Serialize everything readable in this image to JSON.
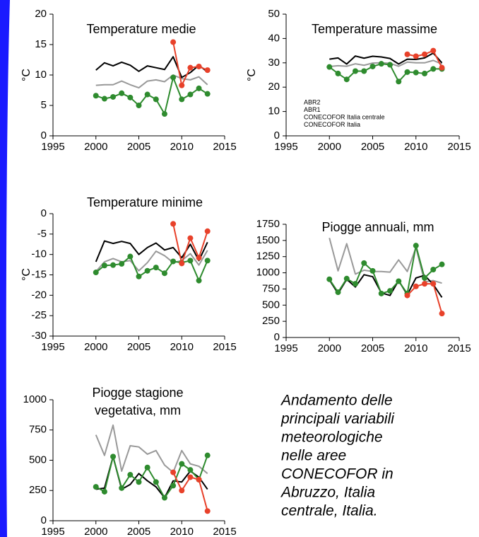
{
  "chart_data": [
    {
      "type": "line",
      "title": "Temperature medie",
      "ylabel": "°C",
      "x": [
        2000,
        2001,
        2002,
        2003,
        2004,
        2005,
        2006,
        2007,
        2008,
        2009,
        2010,
        2011,
        2012,
        2013
      ],
      "xlim": [
        1995,
        2015
      ],
      "xticks": [
        1995,
        2000,
        2005,
        2010,
        2015
      ],
      "ylim": [
        0,
        20
      ],
      "yticks": [
        0,
        5,
        10,
        15,
        20
      ],
      "series": [
        {
          "color": "#999999",
          "values": [
            8.3,
            8.4,
            8.4,
            9.0,
            8.4,
            7.9,
            9.0,
            9.2,
            8.9,
            10.0,
            9.4,
            9.2,
            9.7,
            8.4
          ]
        },
        {
          "color": "#000000",
          "values": [
            10.8,
            12.0,
            11.5,
            12.1,
            11.6,
            10.6,
            11.5,
            11.2,
            10.9,
            13.0,
            9.6,
            10.4,
            11.6,
            10.5
          ]
        },
        {
          "color": "#2e8b2e",
          "markers": true,
          "values": [
            6.6,
            6.1,
            6.4,
            7.0,
            6.3,
            5.0,
            6.8,
            6.0,
            3.6,
            9.6,
            6.0,
            6.8,
            7.8,
            6.9
          ]
        },
        {
          "color": "#e8412a",
          "markers": true,
          "values": [
            null,
            null,
            null,
            null,
            null,
            null,
            null,
            null,
            null,
            15.4,
            8.3,
            11.2,
            11.4,
            10.8
          ]
        }
      ]
    },
    {
      "type": "line",
      "title": "Temperature massime",
      "ylabel": "°C",
      "legend": true,
      "x": [
        2000,
        2001,
        2002,
        2003,
        2004,
        2005,
        2006,
        2007,
        2008,
        2009,
        2010,
        2011,
        2012,
        2013
      ],
      "xlim": [
        1995,
        2015
      ],
      "xticks": [
        1995,
        2000,
        2005,
        2010,
        2015
      ],
      "ylim": [
        0,
        50
      ],
      "yticks": [
        0,
        10,
        20,
        30,
        40,
        50
      ],
      "series": [
        {
          "name": "CONECOFOR Italia",
          "color": "#999999",
          "values": [
            28.5,
            28.8,
            28.6,
            29.6,
            29.0,
            29.9,
            30.0,
            29.8,
            28.6,
            30.3,
            30.0,
            30.0,
            31.0,
            29.5
          ]
        },
        {
          "name": "CONECOFOR Italia centrale",
          "color": "#000000",
          "values": [
            31.5,
            32.0,
            29.5,
            32.8,
            31.9,
            32.7,
            32.4,
            31.8,
            29.5,
            31.5,
            31.4,
            32.0,
            34.0,
            30.0
          ]
        },
        {
          "name": "ABR1",
          "color": "#2e8b2e",
          "markers": true,
          "values": [
            28.3,
            25.6,
            23.2,
            26.6,
            26.6,
            28.5,
            29.6,
            29.2,
            22.3,
            26.2,
            26.0,
            25.6,
            27.5,
            27.5
          ]
        },
        {
          "name": "ABR2",
          "color": "#e8412a",
          "markers": true,
          "values": [
            null,
            null,
            null,
            null,
            null,
            null,
            null,
            null,
            null,
            33.5,
            32.7,
            33.5,
            35.0,
            28.0
          ]
        }
      ]
    },
    {
      "type": "line",
      "title": "Temperature minime",
      "ylabel": "°C",
      "x": [
        2000,
        2001,
        2002,
        2003,
        2004,
        2005,
        2006,
        2007,
        2008,
        2009,
        2010,
        2011,
        2012,
        2013
      ],
      "xlim": [
        1995,
        2015
      ],
      "xticks": [
        1995,
        2000,
        2005,
        2010,
        2015
      ],
      "ylim": [
        -30,
        0
      ],
      "yticks": [
        -30,
        -25,
        -20,
        -15,
        -10,
        -5,
        0
      ],
      "series": [
        {
          "color": "#999999",
          "values": [
            -14.2,
            -11.8,
            -11.0,
            -11.8,
            -11.5,
            -14.0,
            -12.0,
            -9.2,
            -10.3,
            -12.0,
            -11.5,
            -9.8,
            -12.6,
            -9.0
          ]
        },
        {
          "color": "#000000",
          "values": [
            -11.8,
            -6.7,
            -7.3,
            -6.8,
            -7.3,
            -10.0,
            -8.3,
            -7.2,
            -8.9,
            -8.3,
            -10.8,
            -7.5,
            -11.5,
            -7.0
          ]
        },
        {
          "color": "#2e8b2e",
          "markers": true,
          "values": [
            -14.4,
            -12.7,
            -12.6,
            -12.3,
            -10.5,
            -15.4,
            -14.0,
            -13.2,
            -14.6,
            -11.7,
            -12.0,
            -11.5,
            -16.4,
            -11.5
          ]
        },
        {
          "color": "#e8412a",
          "markers": true,
          "values": [
            null,
            null,
            null,
            null,
            null,
            null,
            null,
            null,
            null,
            -2.5,
            -12.2,
            -6.0,
            -10.8,
            -4.3
          ]
        }
      ]
    },
    {
      "type": "line",
      "title": "Piogge annuali, mm",
      "x": [
        2000,
        2001,
        2002,
        2003,
        2004,
        2005,
        2006,
        2007,
        2008,
        2009,
        2010,
        2011,
        2012,
        2013
      ],
      "xlim": [
        1995,
        2015
      ],
      "xticks": [
        1995,
        2000,
        2005,
        2010,
        2015
      ],
      "ylim": [
        0,
        1750
      ],
      "yticks": [
        0,
        250,
        500,
        750,
        1000,
        1250,
        1500,
        1750
      ],
      "series": [
        {
          "color": "#999999",
          "values": [
            1540,
            1030,
            1450,
            980,
            1040,
            1020,
            1020,
            1010,
            1200,
            1020,
            1390,
            860,
            880,
            840
          ]
        },
        {
          "color": "#000000",
          "values": [
            890,
            680,
            900,
            780,
            970,
            940,
            690,
            650,
            880,
            660,
            920,
            960,
            820,
            620
          ]
        },
        {
          "color": "#2e8b2e",
          "markers": true,
          "values": [
            900,
            700,
            910,
            830,
            1150,
            1030,
            680,
            720,
            870,
            680,
            1420,
            920,
            1050,
            1130
          ]
        },
        {
          "color": "#e8412a",
          "markers": true,
          "values": [
            null,
            null,
            null,
            null,
            null,
            null,
            null,
            null,
            null,
            650,
            790,
            830,
            830,
            370
          ]
        }
      ]
    },
    {
      "type": "line",
      "title": [
        "Piogge stagione",
        "vegetativa, mm"
      ],
      "x": [
        2000,
        2001,
        2002,
        2003,
        2004,
        2005,
        2006,
        2007,
        2008,
        2009,
        2010,
        2011,
        2012,
        2013
      ],
      "xlim": [
        1995,
        2015
      ],
      "xticks": [
        1995,
        2000,
        2005,
        2010,
        2015
      ],
      "ylim": [
        0,
        1000
      ],
      "yticks": [
        0,
        250,
        500,
        750,
        1000
      ],
      "series": [
        {
          "color": "#999999",
          "values": [
            710,
            540,
            790,
            410,
            620,
            610,
            550,
            580,
            460,
            400,
            580,
            470,
            450,
            390
          ]
        },
        {
          "color": "#000000",
          "values": [
            260,
            270,
            530,
            260,
            300,
            390,
            330,
            280,
            190,
            330,
            320,
            410,
            360,
            260
          ]
        },
        {
          "color": "#2e8b2e",
          "markers": true,
          "values": [
            280,
            240,
            530,
            270,
            380,
            320,
            440,
            320,
            190,
            290,
            470,
            420,
            340,
            540
          ]
        },
        {
          "color": "#e8412a",
          "markers": true,
          "values": [
            null,
            null,
            null,
            null,
            null,
            null,
            null,
            null,
            null,
            400,
            250,
            360,
            340,
            80
          ]
        }
      ]
    }
  ],
  "caption": [
    "Andamento delle",
    "principali variabili",
    "meteorologiche",
    "nelle aree",
    "CONECOFOR in",
    "Abruzzo, Italia",
    "centrale, Italia."
  ]
}
